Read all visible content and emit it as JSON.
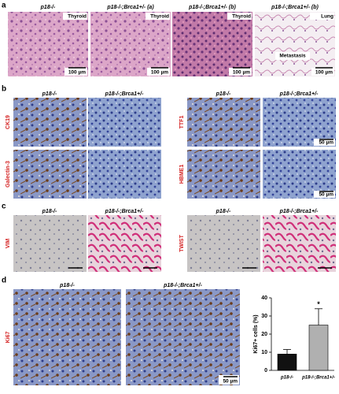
{
  "figure": {
    "panel_a": {
      "label": "a",
      "headers": [
        "p18-/-",
        "p18-/-;Brca1+/- (a)",
        "p18-/-;Brca1+/- (b)",
        "p18-/-;Brca1+/- (b)"
      ],
      "tissue_labels": [
        "Thyroid",
        "Thyroid",
        "Thyroid",
        "Lung"
      ],
      "annotation": "Metastasis",
      "scale_bars": [
        "100 µm",
        "100 µm",
        "100 µm",
        "100 µm"
      ]
    },
    "panel_b": {
      "label": "b",
      "headers": [
        "p18-/-",
        "p18-/-;Brca1+/-",
        "p18-/-",
        "p18-/-;Brca1+/-"
      ],
      "stains": [
        "CK19",
        "Galectin-3",
        "TTF1",
        "HBME1"
      ],
      "scale_bars": [
        "50 µm",
        "50 µm"
      ]
    },
    "panel_c": {
      "label": "c",
      "headers": [
        "p18-/-",
        "p18-/-;Brca1+/-",
        "p18-/-",
        "p18-/-;Brca1+/-"
      ],
      "stains": [
        "VIM",
        "TWIST"
      ]
    },
    "panel_d": {
      "label": "d",
      "headers": [
        "p18-/-",
        "p18-/-;Brca1+/-"
      ],
      "stain": "Ki67",
      "scale_bar": "50 µm"
    }
  },
  "chart_data": {
    "type": "bar",
    "y_label": "Ki67+ cells (%)",
    "categories": [
      "p18-/-",
      "p18-/-;Brca1+/-"
    ],
    "values": [
      9,
      25
    ],
    "errors": [
      2.5,
      9
    ],
    "colors": [
      "#111111",
      "#b0b0b0"
    ],
    "ylim": [
      0,
      40
    ],
    "yticks": [
      0,
      10,
      20,
      30,
      40
    ],
    "annotations": [
      "*"
    ]
  }
}
